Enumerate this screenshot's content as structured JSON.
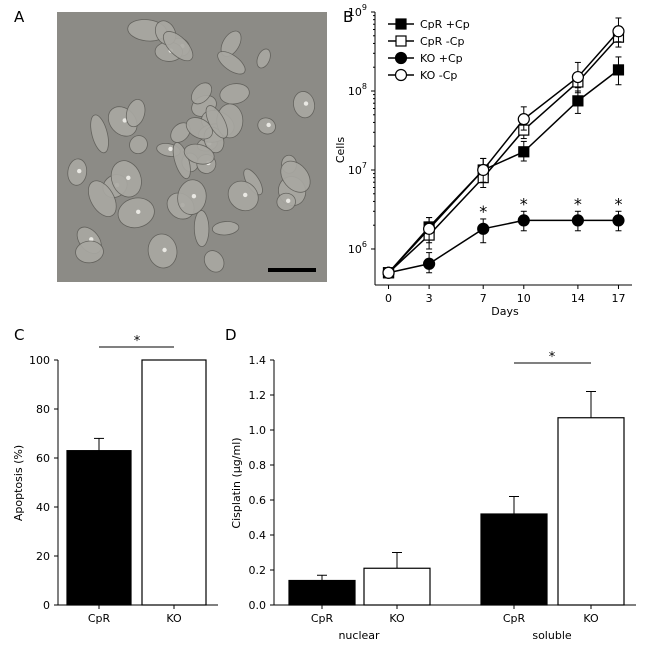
{
  "panels": {
    "A": {
      "letter": "A",
      "image_description_free": true,
      "colors": {
        "background": "#8c8b86",
        "cell": "#a9a8a2",
        "scale_bar": "#000000"
      }
    },
    "B": {
      "letter": "B"
    },
    "C": {
      "letter": "C"
    },
    "D": {
      "letter": "D"
    }
  },
  "chart_data": [
    {
      "id": "B",
      "type": "line",
      "xlabel": "Days",
      "ylabel": "Cells",
      "yscale": "log",
      "ylim": [
        350000,
        1000000000
      ],
      "x": [
        0,
        3,
        7,
        10,
        14,
        17
      ],
      "x_tick_labels": [
        "0",
        "3",
        "7",
        "10",
        "14",
        "17"
      ],
      "y_ticks": [
        {
          "value": 1000000,
          "base": "10",
          "exp": "6"
        },
        {
          "value": 10000000,
          "base": "10",
          "exp": "7"
        },
        {
          "value": 100000000,
          "base": "10",
          "exp": "8"
        },
        {
          "value": 1000000000,
          "base": "10",
          "exp": "9"
        }
      ],
      "legend_position": "top-left",
      "series": [
        {
          "name": "CpR +Cp",
          "marker": "square",
          "fill": "#000000",
          "values": [
            500000,
            1900000,
            10000000,
            17000000,
            75000000,
            185000000
          ],
          "err_low": [
            450000,
            1300000,
            7500000,
            13000000,
            52000000,
            120000000
          ],
          "err_high": [
            560000,
            2500000,
            14000000,
            23000000,
            100000000,
            270000000
          ]
        },
        {
          "name": "CpR -Cp",
          "marker": "square",
          "fill": "#ffffff",
          "values": [
            500000,
            1500000,
            8000000,
            32000000,
            130000000,
            480000000
          ],
          "err_low": [
            450000,
            1000000,
            6000000,
            25000000,
            95000000,
            360000000
          ],
          "err_high": [
            560000,
            2200000,
            11000000,
            42000000,
            170000000,
            640000000
          ]
        },
        {
          "name": "KO +Cp",
          "marker": "circle",
          "fill": "#000000",
          "values": [
            500000,
            650000,
            1800000,
            2300000,
            2300000,
            2300000
          ],
          "err_low": [
            450000,
            500000,
            1200000,
            1700000,
            1700000,
            1700000
          ],
          "err_high": [
            560000,
            900000,
            2400000,
            3000000,
            3000000,
            3000000
          ]
        },
        {
          "name": "KO -Cp",
          "marker": "circle",
          "fill": "#ffffff",
          "values": [
            500000,
            1800000,
            10000000,
            44000000,
            150000000,
            570000000
          ],
          "err_low": [
            450000,
            1200000,
            7000000,
            32000000,
            110000000,
            420000000
          ],
          "err_high": [
            560000,
            2500000,
            14000000,
            63000000,
            230000000,
            840000000
          ]
        }
      ],
      "significance": [
        {
          "x": 7,
          "label": "*"
        },
        {
          "x": 10,
          "label": "*"
        },
        {
          "x": 14,
          "label": "*"
        },
        {
          "x": 17,
          "label": "*"
        }
      ]
    },
    {
      "id": "C",
      "type": "bar",
      "categories": [
        "CpR",
        "KO"
      ],
      "values": [
        63,
        100
      ],
      "errors": [
        5,
        0
      ],
      "fills": [
        "#000000",
        "#ffffff"
      ],
      "ylabel": "Apoptosis (%)",
      "ylim": [
        0,
        100
      ],
      "y_ticks": [
        "0",
        "20",
        "40",
        "60",
        "80",
        "100"
      ],
      "significance": {
        "between": [
          "CpR",
          "KO"
        ],
        "label": "*"
      }
    },
    {
      "id": "D",
      "type": "bar",
      "groups": [
        "nuclear",
        "soluble"
      ],
      "categories": [
        "CpR",
        "KO"
      ],
      "series": [
        {
          "name": "CpR",
          "fill": "#000000",
          "values": [
            0.14,
            0.52
          ],
          "errors": [
            0.03,
            0.1
          ]
        },
        {
          "name": "KO",
          "fill": "#ffffff",
          "values": [
            0.21,
            1.07
          ],
          "errors": [
            0.09,
            0.15
          ]
        }
      ],
      "ylabel": "Cisplatin (µg/ml)",
      "ylim": [
        0,
        1.4
      ],
      "y_ticks": [
        "0.0",
        "0.2",
        "0.4",
        "0.6",
        "0.8",
        "1.0",
        "1.2",
        "1.4"
      ],
      "significance": {
        "group": "soluble",
        "label": "*"
      }
    }
  ]
}
